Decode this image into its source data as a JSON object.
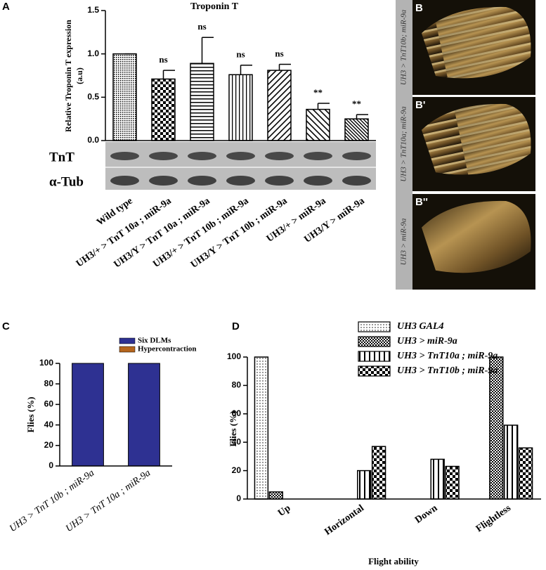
{
  "chart_data": [
    {
      "type": "bar",
      "panel": "A",
      "title": "Troponin T",
      "ylabel": [
        "Relative Troponin T expression",
        "(a.u)"
      ],
      "categories": [
        "Wild type",
        "UH3/+ > TnT 10a ; miR-9a",
        "UH3/Y > TnT 10a ; miR-9a",
        "UH3/+ > TnT 10b ; miR-9a",
        "UH3/Y > TnT 10b ; miR-9a",
        "UH3/+ > miR-9a",
        "UH3/Y > miR-9a"
      ],
      "values": [
        1.0,
        0.71,
        0.89,
        0.76,
        0.81,
        0.36,
        0.25
      ],
      "errors": [
        0,
        0.1,
        0.3,
        0.11,
        0.07,
        0.07,
        0.05
      ],
      "annotations": [
        null,
        "ns",
        "ns",
        "ns",
        "ns",
        "**",
        "**"
      ],
      "patterns": [
        "dots",
        "checker",
        "hlines",
        "vlines",
        "diag-r",
        "diag-l",
        "diag-dense"
      ],
      "color": "#000000",
      "ylim": [
        0,
        1.5
      ],
      "yticks": [
        {
          "value": 0,
          "label": "0.0"
        },
        {
          "value": 0.5,
          "label": "0.5"
        },
        {
          "value": 1,
          "label": "1.0"
        },
        {
          "value": 1.5,
          "label": "1.5"
        }
      ],
      "blot_labels": [
        "TnT",
        "α-Tub"
      ]
    },
    {
      "type": "stacked_bar",
      "panel": "C",
      "ylabel": "Flies (%)",
      "categories": [
        "UH3 > TnT 10b ; miR-9a",
        "UH3 > TnT 10a ; miR-9a"
      ],
      "series": [
        {
          "name": "Six DLMs",
          "color": "#2e3192",
          "values": [
            100,
            100
          ]
        },
        {
          "name": "Hypercontraction",
          "color": "#b5651d",
          "values": [
            0,
            0
          ]
        }
      ],
      "ylim": [
        0,
        100
      ],
      "yticks": [
        0,
        20,
        40,
        60,
        80,
        100
      ],
      "legend": "top-right"
    },
    {
      "type": "grouped_bar",
      "panel": "D",
      "ylabel": "Flies (%)",
      "xlabel": "Flight ability",
      "categories": [
        "Up",
        "Horizontal",
        "Down",
        "Flightless"
      ],
      "series": [
        {
          "name": "UH3 GAL4",
          "pattern": "dots-sparse",
          "values": [
            100,
            0,
            0,
            0
          ]
        },
        {
          "name": "UH3 > miR-9a",
          "pattern": "checker-dense",
          "values": [
            5,
            0,
            0,
            100
          ]
        },
        {
          "name": "UH3 > TnT10a ; miR-9a",
          "pattern": "vlines-wide",
          "values": [
            0,
            20,
            28,
            52
          ]
        },
        {
          "name": "UH3 > TnT10b ; miR-9a",
          "pattern": "checker",
          "values": [
            0,
            37,
            23,
            36
          ]
        }
      ],
      "ylim": [
        0,
        100
      ],
      "yticks": [
        0,
        20,
        40,
        60,
        80,
        100
      ],
      "legend": "top"
    }
  ],
  "panel_b": [
    {
      "label": "B",
      "caption": "UH3 > TnT10b; miR-9a"
    },
    {
      "label": "B'",
      "caption": "UH3 > TnT10a; miR-9a"
    },
    {
      "label": "B''",
      "caption": "UH3 > miR-9a"
    }
  ]
}
